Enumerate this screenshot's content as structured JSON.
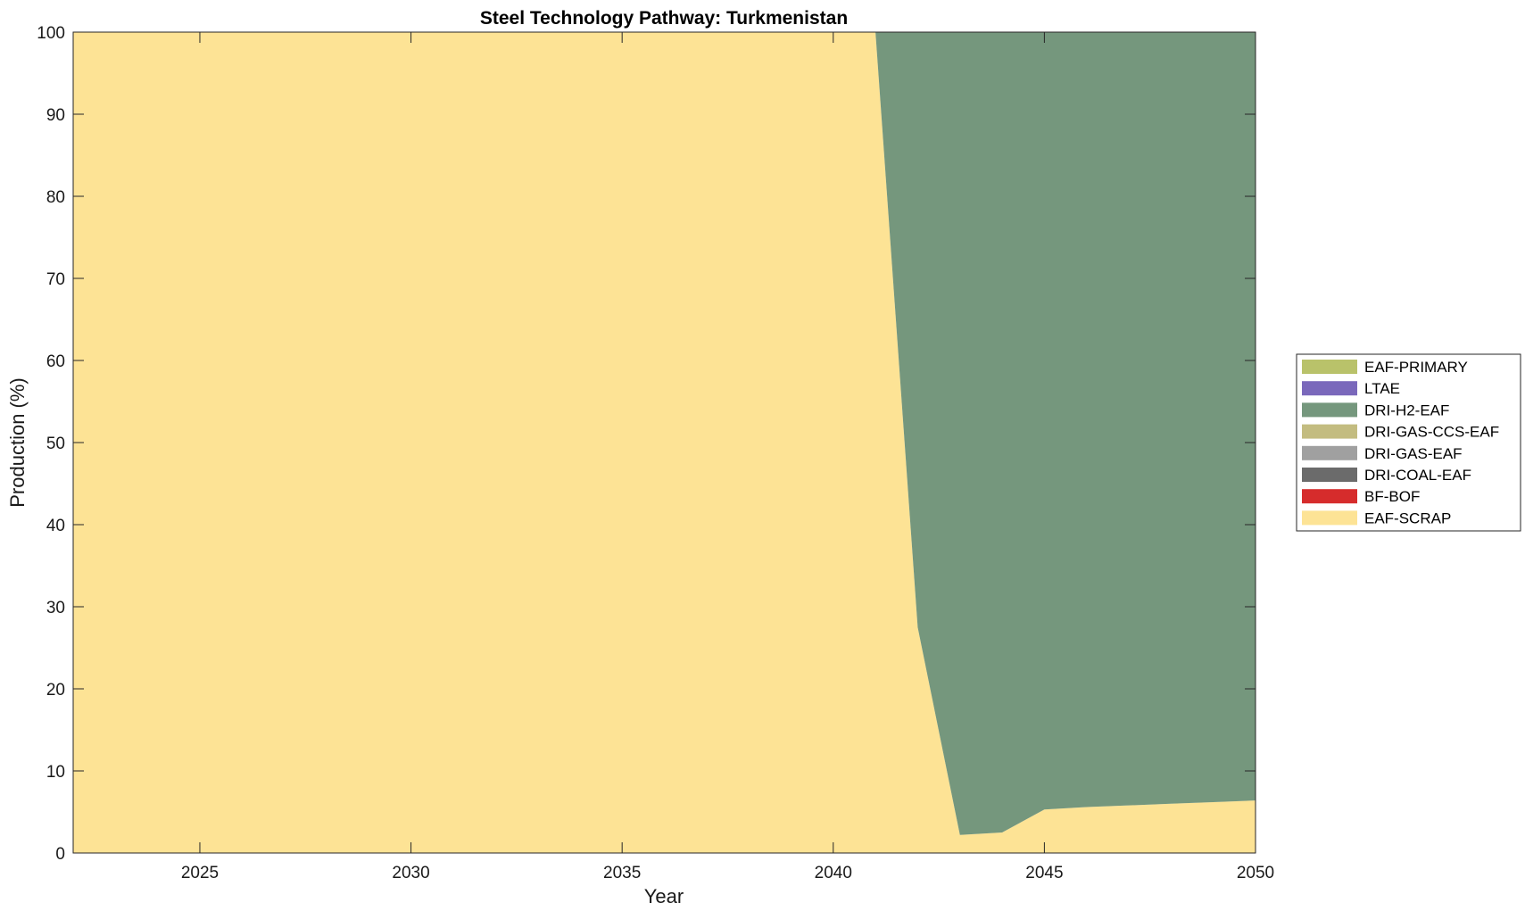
{
  "chart_data": {
    "type": "area",
    "title": "Steel Technology Pathway: Turkmenistan",
    "xlabel": "Year",
    "ylabel": "Production (%)",
    "xlim": [
      2022,
      2050
    ],
    "ylim": [
      0,
      100
    ],
    "xticks": [
      2025,
      2030,
      2035,
      2040,
      2045,
      2050
    ],
    "yticks": [
      0,
      10,
      20,
      30,
      40,
      50,
      60,
      70,
      80,
      90,
      100
    ],
    "legend_position": "right",
    "x": [
      2022,
      2023,
      2024,
      2025,
      2026,
      2027,
      2028,
      2029,
      2030,
      2031,
      2032,
      2033,
      2034,
      2035,
      2036,
      2037,
      2038,
      2039,
      2040,
      2041,
      2042,
      2043,
      2044,
      2045,
      2046,
      2047,
      2048,
      2049,
      2050
    ],
    "series": [
      {
        "name": "EAF-SCRAP",
        "color": "#fde395",
        "values": [
          100,
          100,
          100,
          100,
          100,
          100,
          100,
          100,
          100,
          100,
          100,
          100,
          100,
          100,
          100,
          100,
          100,
          100,
          100,
          100,
          27.5,
          2.2,
          2.5,
          5.3,
          5.6,
          5.8,
          6.0,
          6.2,
          6.4
        ]
      },
      {
        "name": "BF-BOF",
        "color": "#d62c2c",
        "values": [
          0,
          0,
          0,
          0,
          0,
          0,
          0,
          0,
          0,
          0,
          0,
          0,
          0,
          0,
          0,
          0,
          0,
          0,
          0,
          0,
          0,
          0,
          0,
          0,
          0,
          0,
          0,
          0,
          0
        ]
      },
      {
        "name": "DRI-COAL-EAF",
        "color": "#6b6b6b",
        "values": [
          0,
          0,
          0,
          0,
          0,
          0,
          0,
          0,
          0,
          0,
          0,
          0,
          0,
          0,
          0,
          0,
          0,
          0,
          0,
          0,
          0,
          0,
          0,
          0,
          0,
          0,
          0,
          0,
          0
        ]
      },
      {
        "name": "DRI-GAS-EAF",
        "color": "#a0a0a0",
        "values": [
          0,
          0,
          0,
          0,
          0,
          0,
          0,
          0,
          0,
          0,
          0,
          0,
          0,
          0,
          0,
          0,
          0,
          0,
          0,
          0,
          0,
          0,
          0,
          0,
          0,
          0,
          0,
          0,
          0
        ]
      },
      {
        "name": "DRI-GAS-CCS-EAF",
        "color": "#c3bc80",
        "values": [
          0,
          0,
          0,
          0,
          0,
          0,
          0,
          0,
          0,
          0,
          0,
          0,
          0,
          0,
          0,
          0,
          0,
          0,
          0,
          0,
          0,
          0,
          0,
          0,
          0,
          0,
          0,
          0,
          0
        ]
      },
      {
        "name": "DRI-H2-EAF",
        "color": "#75977d",
        "values": [
          0,
          0,
          0,
          0,
          0,
          0,
          0,
          0,
          0,
          0,
          0,
          0,
          0,
          0,
          0,
          0,
          0,
          0,
          0,
          0,
          72.5,
          97.8,
          97.5,
          94.7,
          94.4,
          94.2,
          94.0,
          93.8,
          93.6
        ]
      },
      {
        "name": "LTAE",
        "color": "#7a68bb",
        "values": [
          0,
          0,
          0,
          0,
          0,
          0,
          0,
          0,
          0,
          0,
          0,
          0,
          0,
          0,
          0,
          0,
          0,
          0,
          0,
          0,
          0,
          0,
          0,
          0,
          0,
          0,
          0,
          0,
          0
        ]
      },
      {
        "name": "EAF-PRIMARY",
        "color": "#b9c26a",
        "values": [
          0,
          0,
          0,
          0,
          0,
          0,
          0,
          0,
          0,
          0,
          0,
          0,
          0,
          0,
          0,
          0,
          0,
          0,
          0,
          0,
          0,
          0,
          0,
          0,
          0,
          0,
          0,
          0,
          0
        ]
      }
    ],
    "legend_order": [
      "EAF-PRIMARY",
      "LTAE",
      "DRI-H2-EAF",
      "DRI-GAS-CCS-EAF",
      "DRI-GAS-EAF",
      "DRI-COAL-EAF",
      "BF-BOF",
      "EAF-SCRAP"
    ]
  }
}
